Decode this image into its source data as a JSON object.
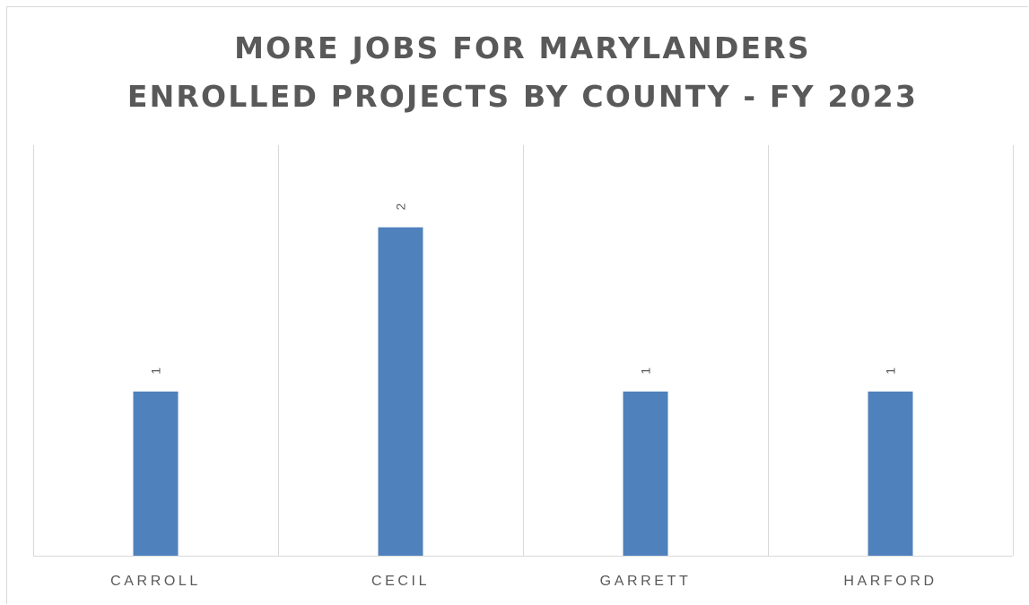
{
  "chart_data": {
    "type": "bar",
    "title_lines": [
      "MORE JOBS FOR MARYLANDERS",
      "ENROLLED PROJECTS BY COUNTY - FY 2023"
    ],
    "categories": [
      "CARROLL",
      "CECIL",
      "GARRETT",
      "HARFORD"
    ],
    "values": [
      1,
      2,
      1,
      1
    ],
    "data_labels": [
      "1",
      "2",
      "1",
      "1"
    ],
    "xlabel": "",
    "ylabel": "",
    "ylim": [
      0,
      2.5
    ],
    "grid": "vertical category separators",
    "legend": "none",
    "bar_color": "#4f81bd"
  }
}
